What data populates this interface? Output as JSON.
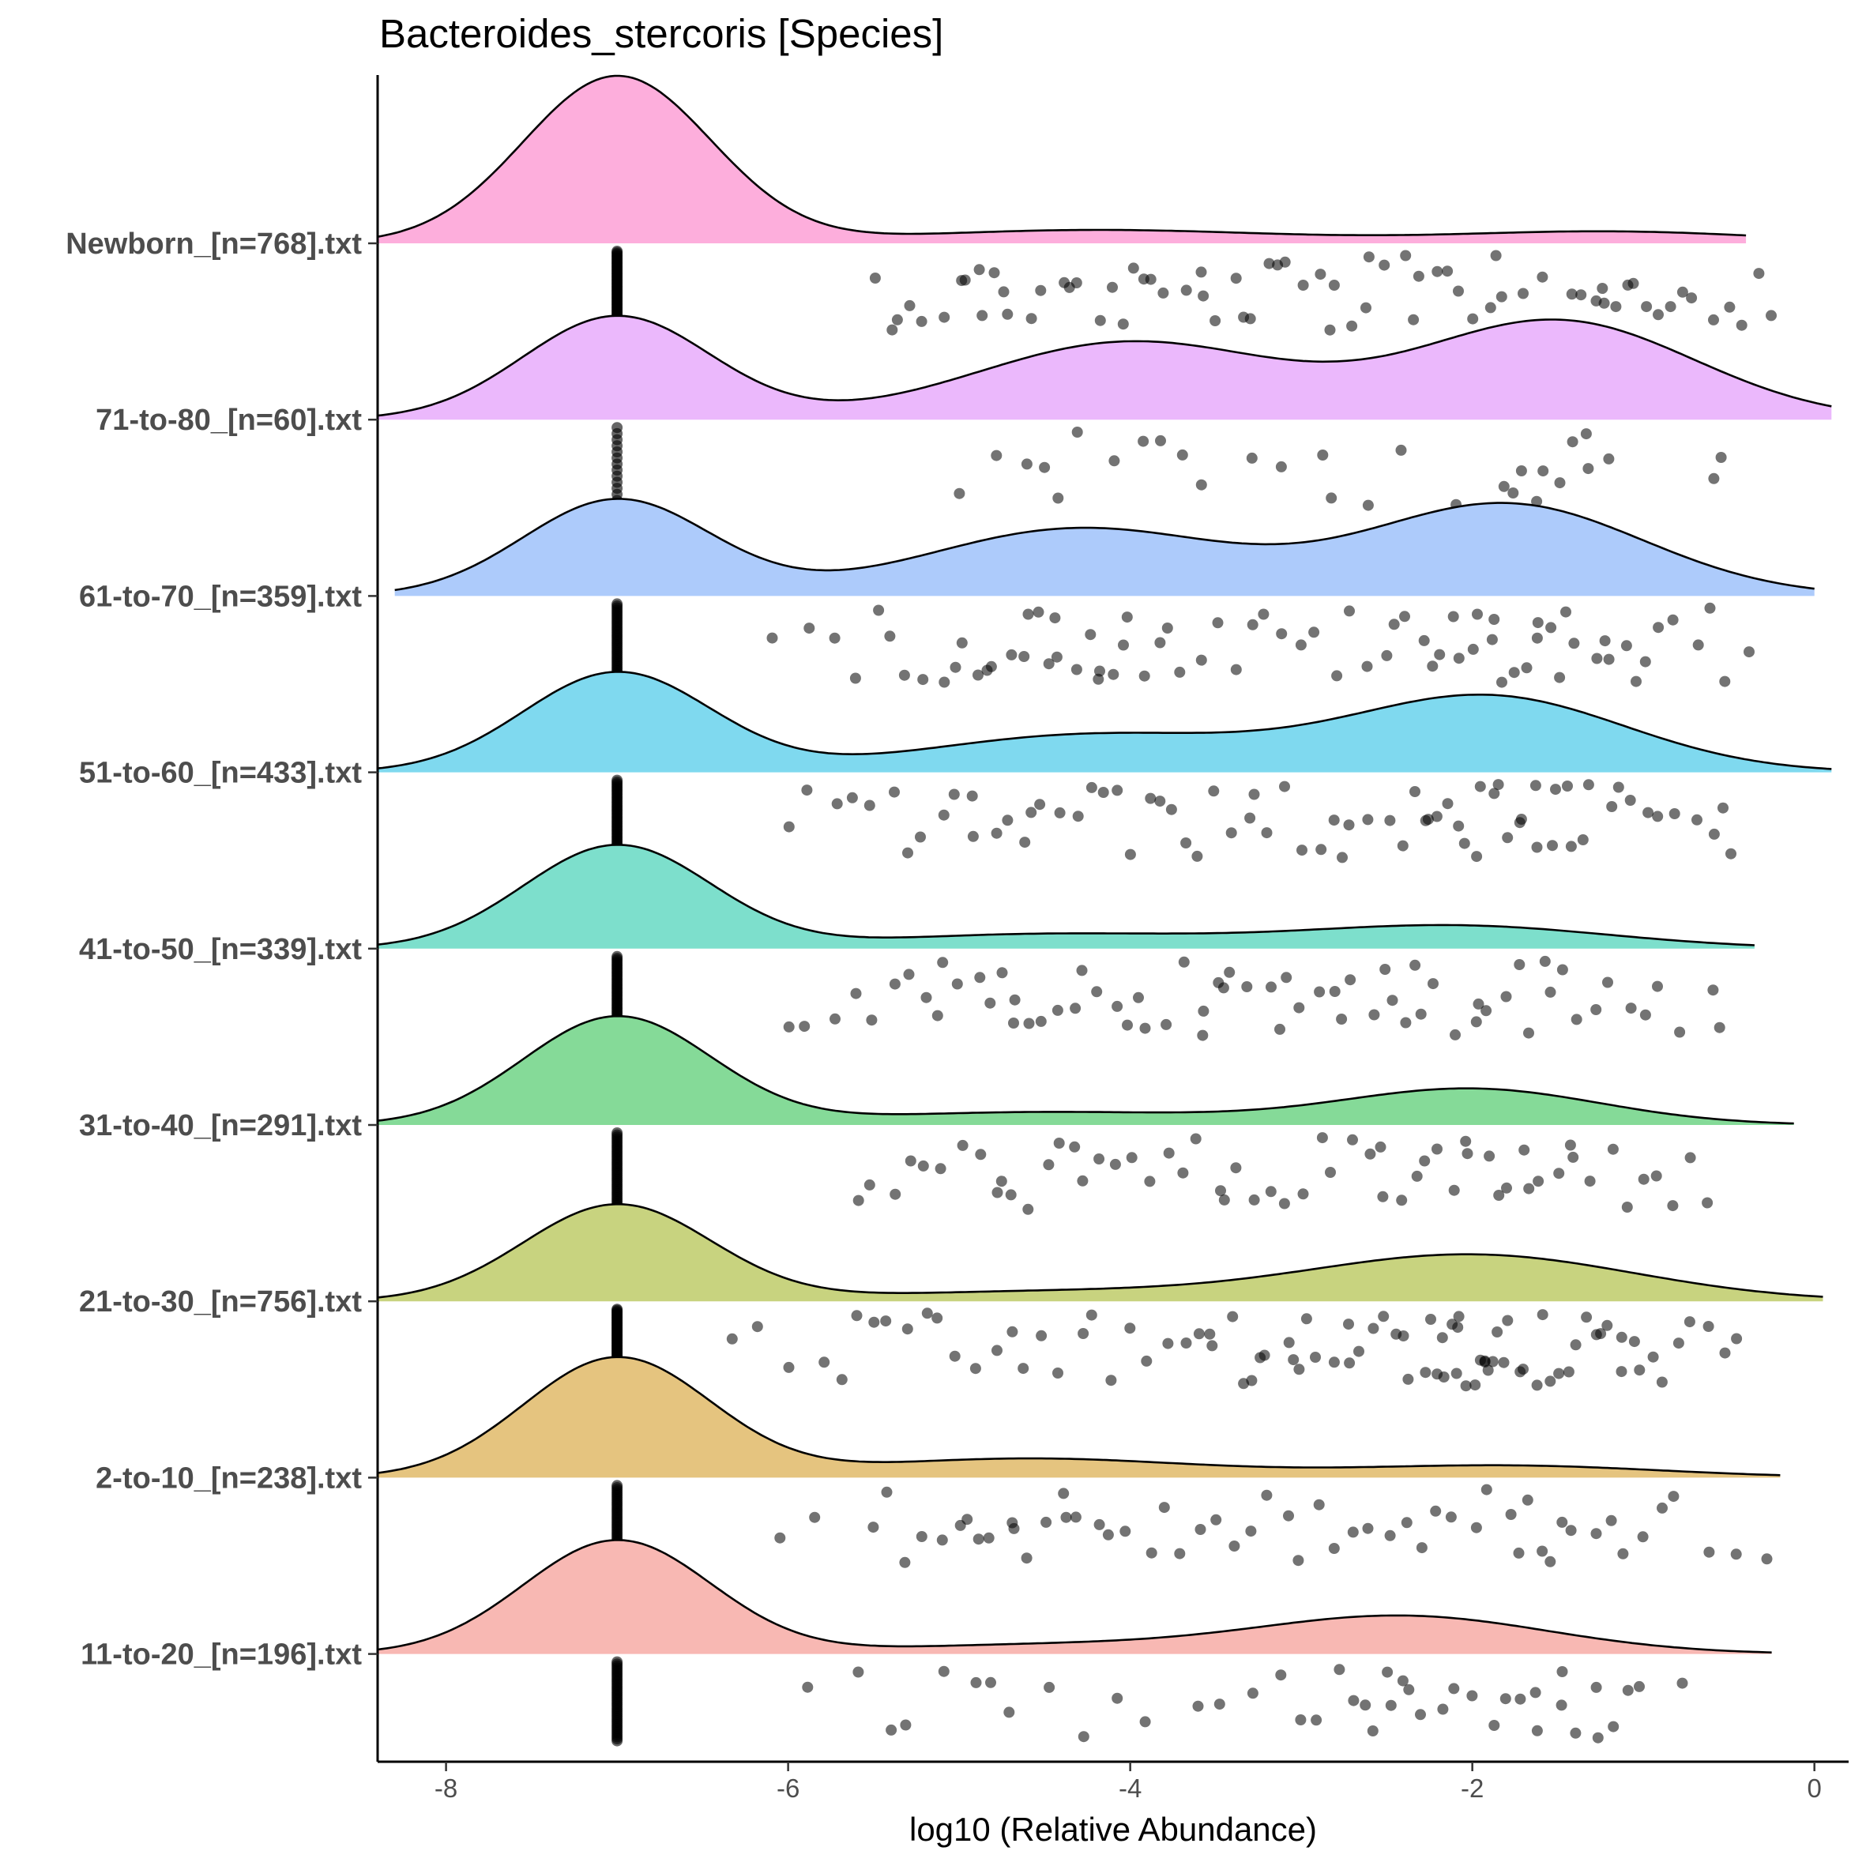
{
  "chart_data": {
    "type": "ridgeline-density-with-jitter",
    "title": "Bacteroides_stercoris [Species]",
    "xlabel": "log10 (Relative Abundance)",
    "ylabel": "",
    "xlim": [
      -8.4,
      0.2
    ],
    "x_ticks": [
      -8,
      -6,
      -4,
      -2,
      0
    ],
    "x_tick_labels": [
      "-8",
      "-6",
      "-4",
      "-2",
      "0"
    ],
    "zero_marker_value": -7,
    "groups": [
      {
        "label": "Newborn_[n=768].txt",
        "fill": "#FDAEDC",
        "x_range": [
          -8.4,
          -0.4
        ],
        "peak_height": 1.0,
        "components": [
          {
            "mean": -7.0,
            "sd": 0.55,
            "weight": 1.0
          },
          {
            "mean": -4.2,
            "sd": 1.1,
            "weight": 0.08
          },
          {
            "mean": -1.2,
            "sd": 0.9,
            "weight": 0.07
          }
        ],
        "points": [
          -5.5,
          -5.4,
          -5.3,
          -5.2,
          -5.1,
          -5.0,
          -4.9,
          -4.8,
          -4.7,
          -4.6,
          -4.5,
          -4.4,
          -4.3,
          -4.2,
          -4.1,
          -4.0,
          -3.9,
          -3.8,
          -3.7,
          -3.6,
          -3.5,
          -3.4,
          -3.3,
          -3.2,
          -3.1,
          -3.0,
          -2.9,
          -2.8,
          -2.7,
          -2.6,
          -2.5,
          -2.4,
          -2.3,
          -2.2,
          -2.1,
          -2.0,
          -1.9,
          -1.8,
          -1.7,
          -1.6,
          -1.5,
          -1.4,
          -1.3,
          -1.2,
          -1.1,
          -1.0,
          -0.9,
          -0.8,
          -0.7,
          -0.6,
          -0.5,
          -0.4,
          -0.3,
          -0.25,
          -5.35,
          -4.85,
          -4.35,
          -3.85,
          -3.35,
          -2.85,
          -2.35,
          -1.85,
          -1.35,
          -0.85,
          -4.75,
          -4.05,
          -3.15,
          -2.15,
          -1.25,
          -1.15,
          -1.05,
          -4.95,
          -3.55,
          -2.65
        ],
        "zero_count": 60
      },
      {
        "label": "71-to-80_[n=60].txt",
        "fill": "#EBB8FC",
        "x_range": [
          -8.4,
          0.1
        ],
        "peak_height": 0.62,
        "components": [
          {
            "mean": -7.0,
            "sd": 0.55,
            "weight": 1.0
          },
          {
            "mean": -4.0,
            "sd": 0.9,
            "weight": 0.75
          },
          {
            "mean": -1.5,
            "sd": 0.8,
            "weight": 0.95
          }
        ],
        "points": [
          -5.0,
          -4.8,
          -4.5,
          -4.4,
          -4.3,
          -4.1,
          -3.9,
          -3.8,
          -3.6,
          -3.3,
          -3.1,
          -2.9,
          -2.8,
          -2.6,
          -2.4,
          -2.1,
          -1.8,
          -1.75,
          -1.7,
          -1.6,
          -1.5,
          -1.4,
          -1.35,
          -1.3,
          -1.2,
          -0.6,
          -0.55,
          -4.6,
          -3.7,
          -1.65
        ],
        "zero_count": 14
      },
      {
        "label": "61-to-70_[n=359].txt",
        "fill": "#ADCBFB",
        "x_range": [
          -8.3,
          0.0
        ],
        "peak_height": 0.58,
        "components": [
          {
            "mean": -7.0,
            "sd": 0.55,
            "weight": 1.0
          },
          {
            "mean": -4.3,
            "sd": 0.9,
            "weight": 0.7
          },
          {
            "mean": -1.8,
            "sd": 0.8,
            "weight": 0.95
          }
        ],
        "points": [
          -6.1,
          -5.9,
          -5.7,
          -5.6,
          -5.5,
          -5.4,
          -5.3,
          -5.2,
          -5.1,
          -5.0,
          -4.9,
          -4.8,
          -4.7,
          -4.6,
          -4.5,
          -4.4,
          -4.3,
          -4.2,
          -4.1,
          -4.0,
          -3.9,
          -3.8,
          -3.7,
          -3.6,
          -3.5,
          -3.4,
          -3.3,
          -3.2,
          -3.1,
          -3.0,
          -2.9,
          -2.8,
          -2.7,
          -2.6,
          -2.5,
          -2.4,
          -2.3,
          -2.2,
          -2.1,
          -2.0,
          -1.9,
          -1.8,
          -1.7,
          -1.6,
          -1.5,
          -1.4,
          -1.3,
          -1.2,
          -1.1,
          -1.0,
          -0.9,
          -0.8,
          -0.7,
          -0.6,
          -0.5,
          -0.4,
          -5.05,
          -4.85,
          -4.65,
          -4.45,
          -4.25,
          -4.05,
          -3.85,
          -2.05,
          -1.85,
          -1.65,
          -1.45,
          -1.25,
          -1.05,
          -2.25,
          -2.45,
          -4.55,
          -4.15,
          -1.75,
          -1.55,
          -1.95
        ],
        "zero_count": 40
      },
      {
        "label": "51-to-60_[n=433].txt",
        "fill": "#7FD9EF",
        "x_range": [
          -8.4,
          0.1
        ],
        "peak_height": 0.6,
        "components": [
          {
            "mean": -7.0,
            "sd": 0.55,
            "weight": 1.0
          },
          {
            "mean": -4.2,
            "sd": 1.0,
            "weight": 0.38
          },
          {
            "mean": -1.9,
            "sd": 0.8,
            "weight": 0.75
          }
        ],
        "points": [
          -6.0,
          -5.9,
          -5.7,
          -5.6,
          -5.5,
          -5.4,
          -5.3,
          -5.2,
          -5.1,
          -5.0,
          -4.9,
          -4.8,
          -4.7,
          -4.6,
          -4.5,
          -4.4,
          -4.3,
          -4.2,
          -4.1,
          -4.0,
          -3.9,
          -3.8,
          -3.7,
          -3.6,
          -3.5,
          -3.4,
          -3.3,
          -3.2,
          -3.1,
          -3.0,
          -2.9,
          -2.8,
          -2.7,
          -2.6,
          -2.5,
          -2.4,
          -2.3,
          -2.2,
          -2.1,
          -2.0,
          -1.9,
          -1.8,
          -1.7,
          -1.6,
          -1.5,
          -1.4,
          -1.3,
          -1.2,
          -1.1,
          -1.0,
          -0.9,
          -0.8,
          -0.7,
          -0.6,
          -0.5,
          -0.55,
          -2.35,
          -2.15,
          -1.95,
          -1.75,
          -1.55,
          -1.35,
          -1.15,
          -4.95,
          -4.55,
          -4.15,
          -2.25,
          -2.05,
          -1.85,
          -1.65,
          -1.45,
          -3.75,
          -3.25,
          -2.75
        ],
        "zero_count": 45
      },
      {
        "label": "41-to-50_[n=339].txt",
        "fill": "#7DDFCC",
        "x_range": [
          -8.4,
          -0.35
        ],
        "peak_height": 0.62,
        "components": [
          {
            "mean": -7.0,
            "sd": 0.55,
            "weight": 1.0
          },
          {
            "mean": -4.5,
            "sd": 1.0,
            "weight": 0.14
          },
          {
            "mean": -2.1,
            "sd": 0.9,
            "weight": 0.22
          }
        ],
        "points": [
          -6.0,
          -5.9,
          -5.7,
          -5.6,
          -5.5,
          -5.4,
          -5.3,
          -5.2,
          -5.1,
          -5.0,
          -4.9,
          -4.8,
          -4.7,
          -4.6,
          -4.5,
          -4.4,
          -4.3,
          -4.2,
          -4.1,
          -4.0,
          -3.9,
          -3.8,
          -3.7,
          -3.6,
          -3.5,
          -3.4,
          -3.3,
          -3.2,
          -3.1,
          -3.0,
          -2.9,
          -2.8,
          -2.7,
          -2.6,
          -2.5,
          -2.4,
          -2.3,
          -2.2,
          -2.1,
          -2.0,
          -1.9,
          -1.8,
          -1.7,
          -1.6,
          -1.5,
          -1.4,
          -1.3,
          -1.2,
          -1.1,
          -1.0,
          -0.9,
          -0.8,
          -0.6,
          -0.55,
          -5.15,
          -4.75,
          -4.35,
          -3.95,
          -3.55,
          -3.15,
          -2.75,
          -2.35,
          -1.95,
          -1.55,
          -4.65,
          -3.45,
          -2.45,
          -1.75
        ],
        "zero_count": 45
      },
      {
        "label": "31-to-40_[n=291].txt",
        "fill": "#85DA98",
        "x_range": [
          -8.4,
          -0.12
        ],
        "peak_height": 0.65,
        "components": [
          {
            "mean": -7.0,
            "sd": 0.55,
            "weight": 1.0
          },
          {
            "mean": -4.5,
            "sd": 1.1,
            "weight": 0.12
          },
          {
            "mean": -2.0,
            "sd": 0.75,
            "weight": 0.33
          }
        ],
        "points": [
          -5.6,
          -5.5,
          -5.4,
          -5.3,
          -5.2,
          -5.1,
          -5.0,
          -4.9,
          -4.8,
          -4.7,
          -4.6,
          -4.5,
          -4.4,
          -4.3,
          -4.2,
          -4.1,
          -4.0,
          -3.9,
          -3.8,
          -3.7,
          -3.6,
          -3.5,
          -3.4,
          -3.3,
          -3.2,
          -3.1,
          -3.0,
          -2.9,
          -2.8,
          -2.7,
          -2.6,
          -2.5,
          -2.4,
          -2.3,
          -2.2,
          -2.1,
          -2.0,
          -1.9,
          -1.8,
          -1.7,
          -1.6,
          -1.5,
          -1.4,
          -1.3,
          -1.2,
          -1.1,
          -1.0,
          -0.9,
          -0.8,
          -0.7,
          -0.6,
          -2.25,
          -2.05,
          -1.85,
          -1.65,
          -1.45,
          -4.75,
          -4.25,
          -3.45,
          -2.55
        ],
        "zero_count": 40
      },
      {
        "label": "21-to-30_[n=756].txt",
        "fill": "#C8D37F",
        "x_range": [
          -8.4,
          0.05
        ],
        "peak_height": 0.58,
        "components": [
          {
            "mean": -7.0,
            "sd": 0.55,
            "weight": 1.0
          },
          {
            "mean": -4.5,
            "sd": 1.1,
            "weight": 0.1
          },
          {
            "mean": -2.0,
            "sd": 0.95,
            "weight": 0.48
          }
        ],
        "points": [
          -6.3,
          -6.2,
          -6.0,
          -5.8,
          -5.7,
          -5.6,
          -5.5,
          -5.4,
          -5.3,
          -5.2,
          -5.1,
          -5.0,
          -4.9,
          -4.8,
          -4.7,
          -4.6,
          -4.5,
          -4.4,
          -4.3,
          -4.2,
          -4.1,
          -4.0,
          -3.9,
          -3.8,
          -3.7,
          -3.6,
          -3.5,
          -3.4,
          -3.3,
          -3.2,
          -3.1,
          -3.0,
          -2.9,
          -2.8,
          -2.7,
          -2.6,
          -2.5,
          -2.4,
          -2.3,
          -2.2,
          -2.1,
          -2.0,
          -1.9,
          -1.8,
          -1.7,
          -1.6,
          -1.5,
          -1.4,
          -1.3,
          -1.2,
          -1.1,
          -1.0,
          -0.9,
          -0.8,
          -0.7,
          -0.6,
          -0.5,
          -0.45,
          -3.55,
          -3.25,
          -2.95,
          -2.65,
          -2.35,
          -2.15,
          -2.05,
          -1.95,
          -1.85,
          -1.75,
          -1.65,
          -1.55,
          -1.45,
          -1.35,
          -1.25,
          -2.25,
          -2.45,
          -2.75,
          -3.05,
          -3.35,
          -1.15,
          -1.05,
          -0.95,
          -2.12,
          -2.08,
          -1.92,
          -1.88,
          -2.02,
          -1.98,
          -2.18,
          -1.82
        ],
        "zero_count": 70
      },
      {
        "label": "2-to-10_[n=238].txt",
        "fill": "#E5C47F",
        "x_range": [
          -8.4,
          -0.2
        ],
        "peak_height": 0.72,
        "components": [
          {
            "mean": -7.0,
            "sd": 0.55,
            "weight": 1.0
          },
          {
            "mean": -4.6,
            "sd": 1.0,
            "weight": 0.16
          },
          {
            "mean": -1.8,
            "sd": 0.9,
            "weight": 0.1
          }
        ],
        "points": [
          -6.05,
          -5.85,
          -5.5,
          -5.4,
          -5.3,
          -5.2,
          -5.1,
          -5.0,
          -4.9,
          -4.8,
          -4.7,
          -4.6,
          -4.5,
          -4.4,
          -4.3,
          -4.2,
          -4.1,
          -4.0,
          -3.9,
          -3.8,
          -3.7,
          -3.6,
          -3.5,
          -3.4,
          -3.3,
          -3.2,
          -3.1,
          -3.0,
          -2.9,
          -2.8,
          -2.7,
          -2.6,
          -2.5,
          -2.4,
          -2.3,
          -2.2,
          -2.1,
          -2.0,
          -1.9,
          -1.8,
          -1.7,
          -1.6,
          -1.5,
          -1.4,
          -1.3,
          -1.2,
          -1.1,
          -1.0,
          -0.9,
          -0.8,
          -0.6,
          -0.45,
          -0.25,
          -4.95,
          -4.65,
          -4.35,
          -1.65,
          -1.55
        ],
        "zero_count": 40
      },
      {
        "label": "11-to-20_[n=196].txt",
        "fill": "#F8B8B3",
        "x_range": [
          -8.4,
          -0.25
        ],
        "peak_height": 0.68,
        "components": [
          {
            "mean": -7.0,
            "sd": 0.55,
            "weight": 1.0
          },
          {
            "mean": -4.5,
            "sd": 1.0,
            "weight": 0.08
          },
          {
            "mean": -2.4,
            "sd": 0.85,
            "weight": 0.33
          }
        ],
        "points": [
          -5.9,
          -5.6,
          -5.4,
          -5.3,
          -5.1,
          -4.9,
          -4.8,
          -4.7,
          -4.5,
          -4.3,
          -4.1,
          -3.9,
          -3.6,
          -3.5,
          -3.3,
          -3.1,
          -3.0,
          -2.9,
          -2.8,
          -2.7,
          -2.6,
          -2.5,
          -2.4,
          -2.3,
          -2.2,
          -2.1,
          -2.0,
          -1.9,
          -1.8,
          -1.7,
          -1.6,
          -1.5,
          -1.4,
          -1.3,
          -1.2,
          -1.1,
          -1.0,
          -0.8,
          -2.45,
          -2.35,
          -2.65,
          -1.65,
          -1.45,
          -1.25
        ],
        "zero_count": 40
      }
    ]
  }
}
